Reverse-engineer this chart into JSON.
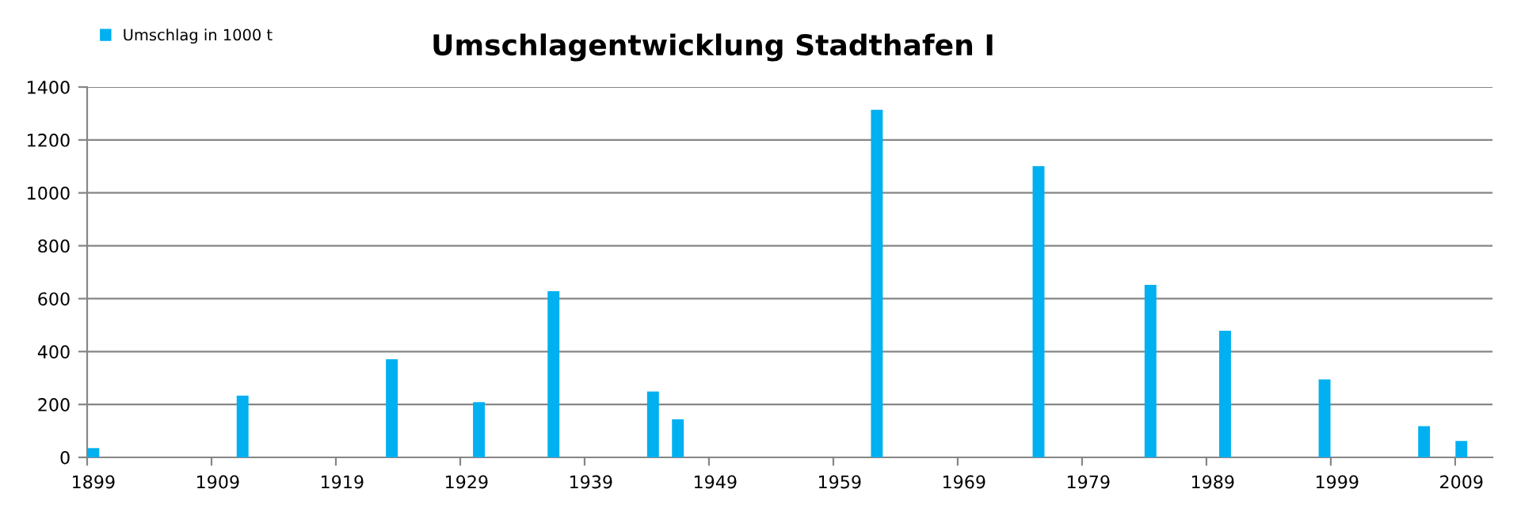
{
  "chart_data": {
    "type": "bar",
    "title": "Umschlagentwicklung Stadthafen I",
    "categories": [
      "1899",
      null,
      null,
      null,
      null,
      null,
      null,
      null,
      null,
      null,
      "1909",
      null,
      null,
      null,
      null,
      null,
      null,
      null,
      null,
      null,
      "1919",
      null,
      null,
      null,
      null,
      null,
      null,
      null,
      null,
      null,
      "1929",
      null,
      null,
      null,
      null,
      null,
      null,
      null,
      null,
      null,
      "1939",
      null,
      null,
      null,
      null,
      null,
      null,
      null,
      null,
      null,
      "1949",
      null,
      null,
      null,
      null,
      null,
      null,
      null,
      null,
      null,
      "1959",
      null,
      null,
      null,
      null,
      null,
      null,
      null,
      null,
      null,
      "1969",
      null,
      null,
      null,
      null,
      null,
      null,
      null,
      null,
      null,
      "1979",
      null,
      null,
      null,
      null,
      null,
      null,
      null,
      null,
      null,
      "1989",
      null,
      null,
      null,
      null,
      null,
      null,
      null,
      null,
      null,
      "1999",
      null,
      null,
      null,
      null,
      null,
      null,
      null,
      null,
      null,
      "2009",
      null,
      null
    ],
    "series": [
      {
        "name": "Umschlag in 1000 t",
        "color": "#00b0f0",
        "values": [
          35,
          null,
          null,
          null,
          null,
          null,
          null,
          null,
          null,
          null,
          null,
          null,
          233,
          null,
          null,
          null,
          null,
          null,
          null,
          null,
          null,
          null,
          null,
          null,
          371,
          null,
          null,
          null,
          null,
          null,
          null,
          209,
          null,
          null,
          null,
          null,
          null,
          628,
          null,
          null,
          null,
          null,
          null,
          null,
          null,
          249,
          null,
          144,
          null,
          null,
          null,
          null,
          null,
          null,
          null,
          null,
          null,
          null,
          null,
          null,
          null,
          null,
          null,
          1314,
          null,
          null,
          null,
          null,
          null,
          null,
          null,
          null,
          null,
          null,
          null,
          null,
          1101,
          null,
          null,
          null,
          null,
          null,
          null,
          null,
          null,
          652,
          null,
          null,
          null,
          null,
          null,
          479,
          null,
          null,
          null,
          null,
          null,
          null,
          null,
          295,
          null,
          null,
          null,
          null,
          null,
          null,
          null,
          118,
          null,
          null,
          62,
          null,
          null
        ]
      }
    ],
    "ylim": [
      0,
      1400
    ],
    "yticks": [
      0,
      200,
      400,
      600,
      800,
      1000,
      1200,
      1400
    ],
    "grid": "y",
    "legend": "top left"
  }
}
